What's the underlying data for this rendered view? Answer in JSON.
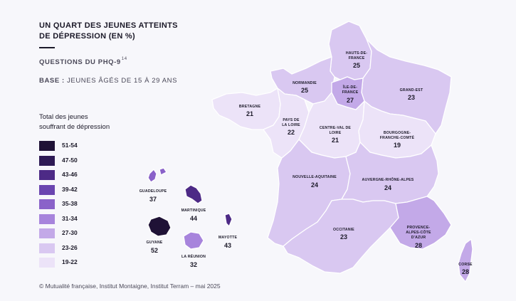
{
  "header": {
    "title_line1": "UN QUART DES JEUNES ATTEINTS",
    "title_line2": "DE DÉPRESSION (EN %)",
    "subtitle": "QUESTIONS DU PHQ-9",
    "subtitle_note": "14",
    "base_label": "BASE :",
    "base_text": "JEUNES ÂGÉS DE 15 À 29 ANS"
  },
  "legend": {
    "title_line1": "Total des jeunes",
    "title_line2": "souffrant de dépression",
    "items": [
      {
        "label": "51-54",
        "color": "#1f1236"
      },
      {
        "label": "47-50",
        "color": "#2e1a55"
      },
      {
        "label": "43-46",
        "color": "#4d2a86"
      },
      {
        "label": "39-42",
        "color": "#6a45b0"
      },
      {
        "label": "35-38",
        "color": "#8a62c9"
      },
      {
        "label": "31-34",
        "color": "#a784dc"
      },
      {
        "label": "27-30",
        "color": "#c3a9e8"
      },
      {
        "label": "23-26",
        "color": "#d9c8f1"
      },
      {
        "label": "19-22",
        "color": "#ece3f8"
      }
    ]
  },
  "regions": [
    {
      "name": "HAUTS-DE-",
      "name2": "FRANCE",
      "value": "25",
      "color": "#d9c8f1"
    },
    {
      "name": "NORMANDIE",
      "name2": "",
      "value": "25",
      "color": "#d9c8f1"
    },
    {
      "name": "ÎLE-DE-",
      "name2": "FRANCE",
      "value": "27",
      "color": "#c3a9e8"
    },
    {
      "name": "GRAND-EST",
      "name2": "",
      "value": "23",
      "color": "#d9c8f1"
    },
    {
      "name": "BRETAGNE",
      "name2": "",
      "value": "21",
      "color": "#ece3f8"
    },
    {
      "name": "PAYS DE",
      "name2": "LA LOIRE",
      "value": "22",
      "color": "#ece3f8"
    },
    {
      "name": "CENTRE-VAL DE",
      "name2": "LOIRE",
      "value": "21",
      "color": "#ece3f8"
    },
    {
      "name": "BOURGOGNE-",
      "name2": "FRANCHE-COMTÉ",
      "value": "19",
      "color": "#ece3f8"
    },
    {
      "name": "NOUVELLE-AQUITAINE",
      "name2": "",
      "value": "24",
      "color": "#d9c8f1"
    },
    {
      "name": "AUVERGNE-RHÔNE-ALPES",
      "name2": "",
      "value": "24",
      "color": "#d9c8f1"
    },
    {
      "name": "OCCITANIE",
      "name2": "",
      "value": "23",
      "color": "#d9c8f1"
    },
    {
      "name": "PROVENCE-",
      "name2": "ALPES-CÔTE",
      "name3": "D'AZUR",
      "value": "28",
      "color": "#c3a9e8"
    },
    {
      "name": "CORSE",
      "name2": "",
      "value": "28",
      "color": "#c3a9e8"
    }
  ],
  "overseas": [
    {
      "name": "GUADELOUPE",
      "value": "37",
      "color": "#8a62c9"
    },
    {
      "name": "MARTINIQUE",
      "value": "44",
      "color": "#4d2a86"
    },
    {
      "name": "MAYOTTE",
      "value": "43",
      "color": "#4d2a86"
    },
    {
      "name": "GUYANE",
      "value": "52",
      "color": "#1f1236"
    },
    {
      "name": "LA RÉUNION",
      "value": "32",
      "color": "#a784dc"
    }
  ],
  "source": "© Mutualité française, Institut Montaigne, Institut Terram – mai 2025"
}
